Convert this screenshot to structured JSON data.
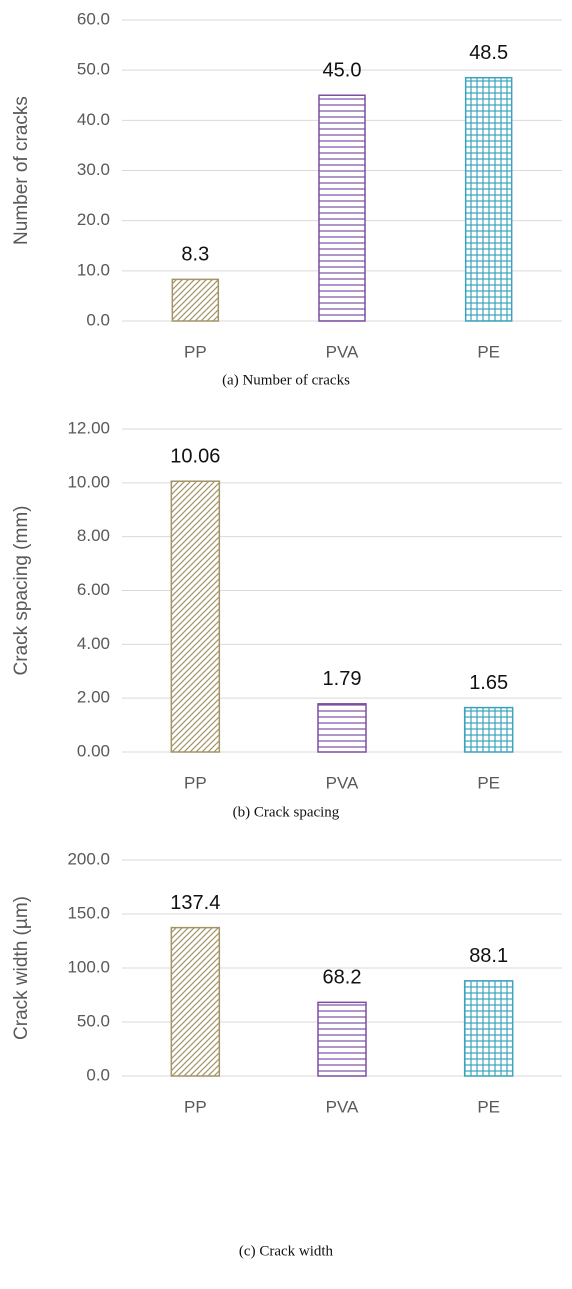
{
  "chart_data": [
    {
      "type": "bar",
      "y_label": "Number of cracks",
      "caption": "(a)  Number  of  cracks",
      "categories": [
        "PP",
        "PVA",
        "PE"
      ],
      "values": [
        8.3,
        45.0,
        48.5
      ],
      "value_labels": [
        "8.3",
        "45.0",
        "48.5"
      ],
      "colors": [
        "#a39466",
        "#7b4fa3",
        "#3ba3bd"
      ],
      "hatches": [
        "diagonal",
        "horizontal",
        "grid"
      ],
      "ylim": [
        0,
        60
      ],
      "yticks": [
        {
          "value": 0,
          "label": "0.0"
        },
        {
          "value": 10,
          "label": "10.0"
        },
        {
          "value": 20,
          "label": "20.0"
        },
        {
          "value": 30,
          "label": "30.0"
        },
        {
          "value": 40,
          "label": "40.0"
        },
        {
          "value": 50,
          "label": "50.0"
        },
        {
          "value": 60,
          "label": "60.0"
        }
      ],
      "grid": true
    },
    {
      "type": "bar",
      "y_label": "Crack spacing (mm)",
      "caption": "(b)  Crack  spacing",
      "categories": [
        "PP",
        "PVA",
        "PE"
      ],
      "values": [
        10.06,
        1.79,
        1.65
      ],
      "value_labels": [
        "10.06",
        "1.79",
        "1.65"
      ],
      "colors": [
        "#a39466",
        "#7b4fa3",
        "#3ba3bd"
      ],
      "hatches": [
        "diagonal",
        "horizontal",
        "grid"
      ],
      "ylim": [
        0,
        12
      ],
      "yticks": [
        {
          "value": 0,
          "label": "0.00"
        },
        {
          "value": 2,
          "label": "2.00"
        },
        {
          "value": 4,
          "label": "4.00"
        },
        {
          "value": 6,
          "label": "6.00"
        },
        {
          "value": 8,
          "label": "8.00"
        },
        {
          "value": 10,
          "label": "10.00"
        },
        {
          "value": 12,
          "label": "12.00"
        }
      ],
      "grid": true
    },
    {
      "type": "bar",
      "y_label": "Crack width (µm)",
      "caption": "(c)  Crack  width",
      "categories": [
        "PP",
        "PVA",
        "PE"
      ],
      "values": [
        137.4,
        68.2,
        88.1
      ],
      "value_labels": [
        "137.4",
        "68.2",
        "88.1"
      ],
      "colors": [
        "#a39466",
        "#7b4fa3",
        "#3ba3bd"
      ],
      "hatches": [
        "diagonal",
        "horizontal",
        "grid"
      ],
      "ylim": [
        0,
        200
      ],
      "yticks": [
        {
          "value": 0,
          "label": "0.0"
        },
        {
          "value": 50,
          "label": "50.0"
        },
        {
          "value": 100,
          "label": "100.0"
        },
        {
          "value": 150,
          "label": "150.0"
        },
        {
          "value": 200,
          "label": "200.0"
        }
      ],
      "grid": true
    }
  ]
}
